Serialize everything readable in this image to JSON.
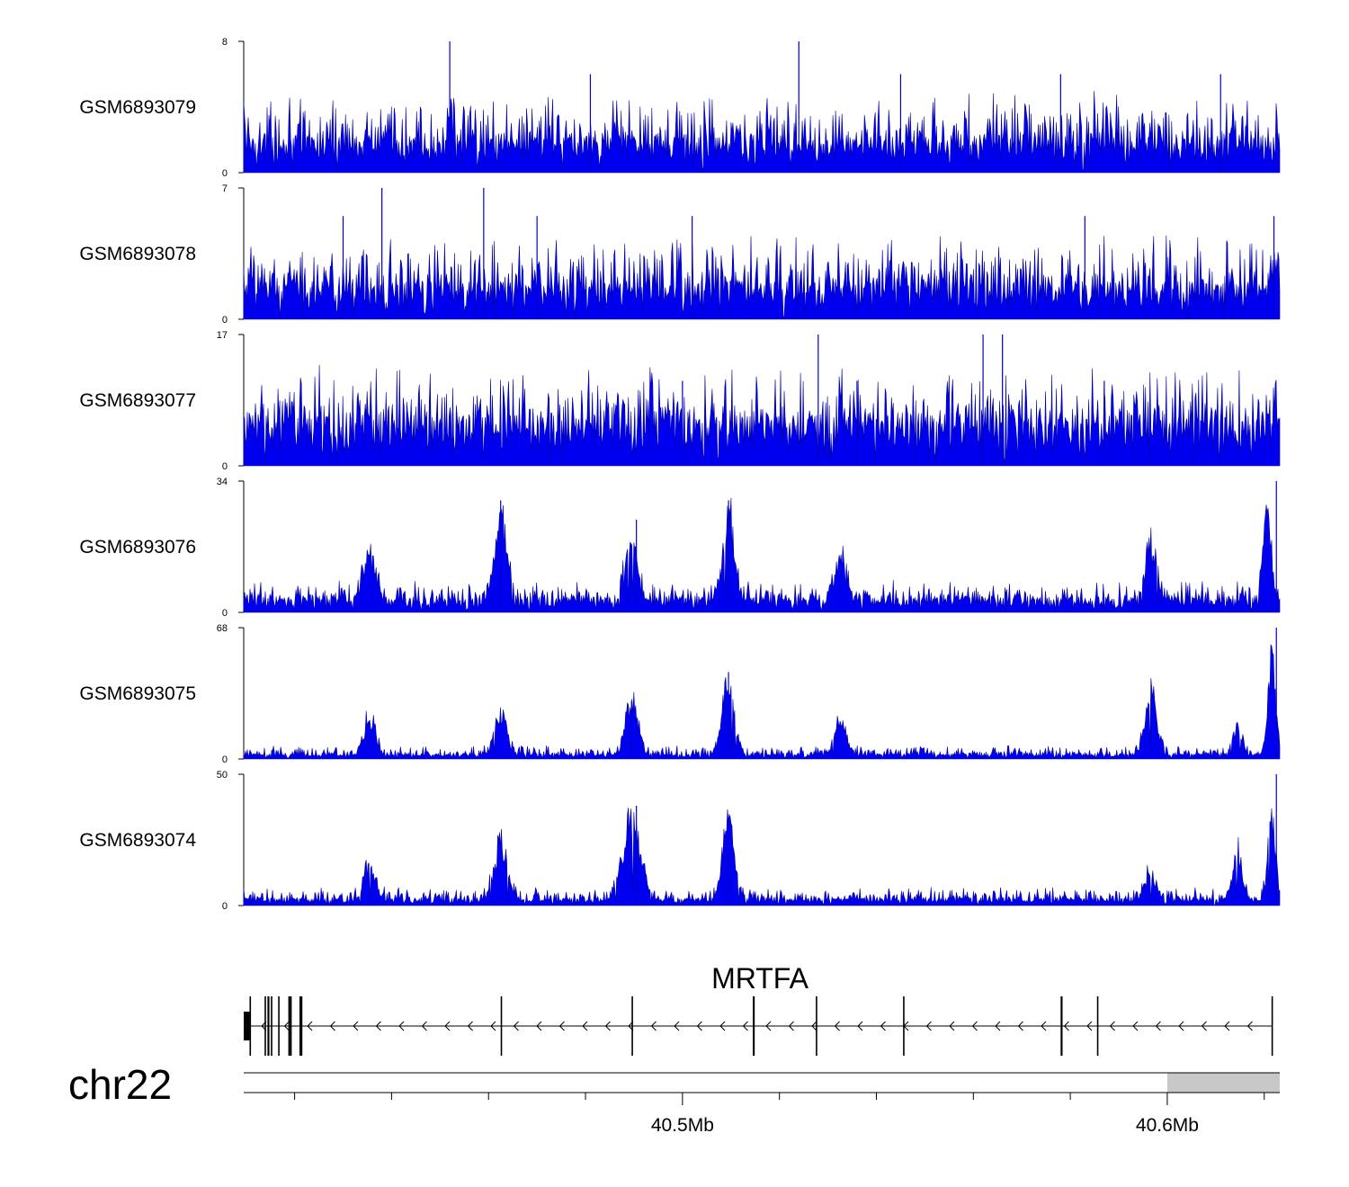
{
  "chart_data": {
    "type": "area",
    "title": "",
    "xlabel": "",
    "ylabel": "",
    "chromosome": "chr22",
    "x_range_mb": [
      40.4095,
      40.6232
    ],
    "x_major_ticks": [
      {
        "value": 40.5,
        "label": "40.5Mb"
      },
      {
        "value": 40.6,
        "label": "40.6Mb"
      }
    ],
    "x_minor_step_mb": 0.02,
    "gap_region_mb": [
      40.6,
      40.6232
    ],
    "tracks": [
      {
        "name": "GSM6893079",
        "ylim": [
          0,
          8
        ],
        "ymin_label": "0",
        "ymax_label": "8",
        "baseline": 1.6,
        "noise": 1.3,
        "peaks": [],
        "spikes": [
          [
            40.452,
            8
          ],
          [
            40.524,
            8
          ],
          [
            40.481,
            6
          ],
          [
            40.545,
            6
          ],
          [
            40.578,
            6
          ],
          [
            40.611,
            6
          ]
        ]
      },
      {
        "name": "GSM6893078",
        "ylim": [
          0,
          7
        ],
        "ymin_label": "0",
        "ymax_label": "7",
        "baseline": 1.5,
        "noise": 1.2,
        "peaks": [],
        "spikes": [
          [
            40.438,
            7
          ],
          [
            40.459,
            7
          ],
          [
            40.43,
            5.5
          ],
          [
            40.47,
            5.5
          ],
          [
            40.502,
            5.5
          ],
          [
            40.583,
            5.5
          ],
          [
            40.622,
            5.5
          ]
        ]
      },
      {
        "name": "GSM6893077",
        "ylim": [
          0,
          17
        ],
        "ymin_label": "0",
        "ymax_label": "17",
        "baseline": 5,
        "noise": 3,
        "peaks": [],
        "spikes": [
          [
            40.528,
            17
          ],
          [
            40.562,
            17
          ],
          [
            40.566,
            17
          ],
          [
            40.536,
            11
          ],
          [
            40.5,
            11
          ],
          [
            40.587,
            11
          ]
        ]
      },
      {
        "name": "GSM6893076",
        "ylim": [
          0,
          34
        ],
        "ymin_label": "0",
        "ymax_label": "34",
        "baseline": 3,
        "noise": 2,
        "peaks": [
          [
            40.4355,
            0.0012,
            12
          ],
          [
            40.4625,
            0.0012,
            22
          ],
          [
            40.4895,
            0.0012,
            15
          ],
          [
            40.5095,
            0.0012,
            20
          ],
          [
            40.5325,
            0.0012,
            10
          ],
          [
            40.5965,
            0.0012,
            12
          ],
          [
            40.6205,
            0.0008,
            25
          ]
        ],
        "spikes": [
          [
            40.4625,
            29
          ],
          [
            40.5095,
            29
          ],
          [
            40.4905,
            24
          ],
          [
            40.6225,
            34
          ]
        ]
      },
      {
        "name": "GSM6893075",
        "ylim": [
          0,
          68
        ],
        "ymin_label": "0",
        "ymax_label": "68",
        "baseline": 2,
        "noise": 2,
        "peaks": [
          [
            40.4355,
            0.0012,
            18
          ],
          [
            40.4625,
            0.0012,
            22
          ],
          [
            40.4895,
            0.0012,
            28
          ],
          [
            40.5095,
            0.0012,
            35
          ],
          [
            40.5325,
            0.0012,
            16
          ],
          [
            40.5965,
            0.0012,
            30
          ],
          [
            40.6145,
            0.001,
            14
          ],
          [
            40.6215,
            0.0008,
            45
          ]
        ],
        "spikes": [
          [
            40.5095,
            45
          ],
          [
            40.4895,
            30
          ],
          [
            40.6225,
            68
          ]
        ]
      },
      {
        "name": "GSM6893074",
        "ylim": [
          0,
          50
        ],
        "ymin_label": "0",
        "ymax_label": "50",
        "baseline": 2,
        "noise": 2,
        "peaks": [
          [
            40.4355,
            0.0012,
            12
          ],
          [
            40.4625,
            0.0014,
            20
          ],
          [
            40.4895,
            0.0018,
            28
          ],
          [
            40.5095,
            0.0012,
            26
          ],
          [
            40.5965,
            0.001,
            10
          ],
          [
            40.6145,
            0.001,
            16
          ],
          [
            40.6215,
            0.0008,
            30
          ]
        ],
        "spikes": [
          [
            40.4905,
            38
          ],
          [
            40.5095,
            32
          ],
          [
            40.6225,
            50
          ]
        ]
      }
    ],
    "gene": {
      "name": "MRTFA",
      "strand": "-",
      "start_mb": 40.4095,
      "end_mb": 40.6215,
      "exons": [
        [
          40.4095,
          40.4107,
          "utr"
        ],
        [
          40.4107,
          40.411,
          "cds"
        ],
        [
          40.4138,
          40.414,
          "cds"
        ],
        [
          40.4144,
          40.4148,
          "cds"
        ],
        [
          40.4151,
          40.4154,
          "cds"
        ],
        [
          40.4166,
          40.4168,
          "cds"
        ],
        [
          40.4187,
          40.4189,
          "cds"
        ],
        [
          40.419,
          40.4194,
          "cds"
        ],
        [
          40.421,
          40.4211,
          "cds"
        ],
        [
          40.4213,
          40.4214,
          "cds"
        ],
        [
          40.4625,
          40.4627,
          "cds"
        ],
        [
          40.4895,
          40.4898,
          "cds"
        ],
        [
          40.5145,
          40.5149,
          "cds"
        ],
        [
          40.5275,
          40.5277,
          "cds"
        ],
        [
          40.5455,
          40.5458,
          "cds"
        ],
        [
          40.578,
          40.5784,
          "cds"
        ],
        [
          40.5855,
          40.5857,
          "cds"
        ],
        [
          40.6215,
          40.6217,
          "cds"
        ]
      ]
    }
  }
}
